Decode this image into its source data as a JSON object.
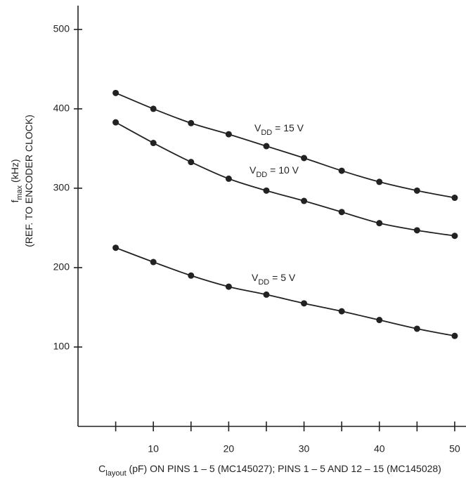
{
  "chart_data": {
    "type": "line",
    "ylabel": [
      [
        "f",
        "max",
        " (kHz)"
      ],
      [
        "(REF. TO ENCODER CLOCK)"
      ]
    ],
    "xlabel": [
      "C",
      "layout",
      " (pF) ON PINS 1 – 5 (MC145027); PINS 1 – 5 AND 12 – 15 (MC145028)"
    ],
    "x": [
      5,
      10,
      15,
      20,
      25,
      30,
      35,
      40,
      45,
      50
    ],
    "series": [
      {
        "color": "#222222",
        "values": [
          420,
          400,
          382,
          368,
          353,
          338,
          322,
          308,
          297,
          288
        ]
      },
      {
        "color": "#222222",
        "values": [
          383,
          357,
          333,
          312,
          297,
          284,
          270,
          256,
          247,
          240
        ]
      },
      {
        "color": "#222222",
        "values": [
          225,
          207,
          190,
          176,
          166,
          155,
          145,
          134,
          123,
          114
        ]
      }
    ],
    "annotations": [
      [
        "V",
        "DD",
        " = 15 V"
      ],
      [
        "V",
        "DD",
        " = 10 V"
      ],
      [
        "V",
        "DD",
        " = 5 V"
      ]
    ],
    "xlim": [
      0,
      51.5
    ],
    "ylim": [
      0,
      530
    ],
    "xticks": [
      10,
      20,
      30,
      40,
      50
    ],
    "xminor": [
      5,
      15,
      25,
      35,
      45
    ],
    "yticks": [
      100,
      200,
      300,
      400,
      500
    ]
  }
}
